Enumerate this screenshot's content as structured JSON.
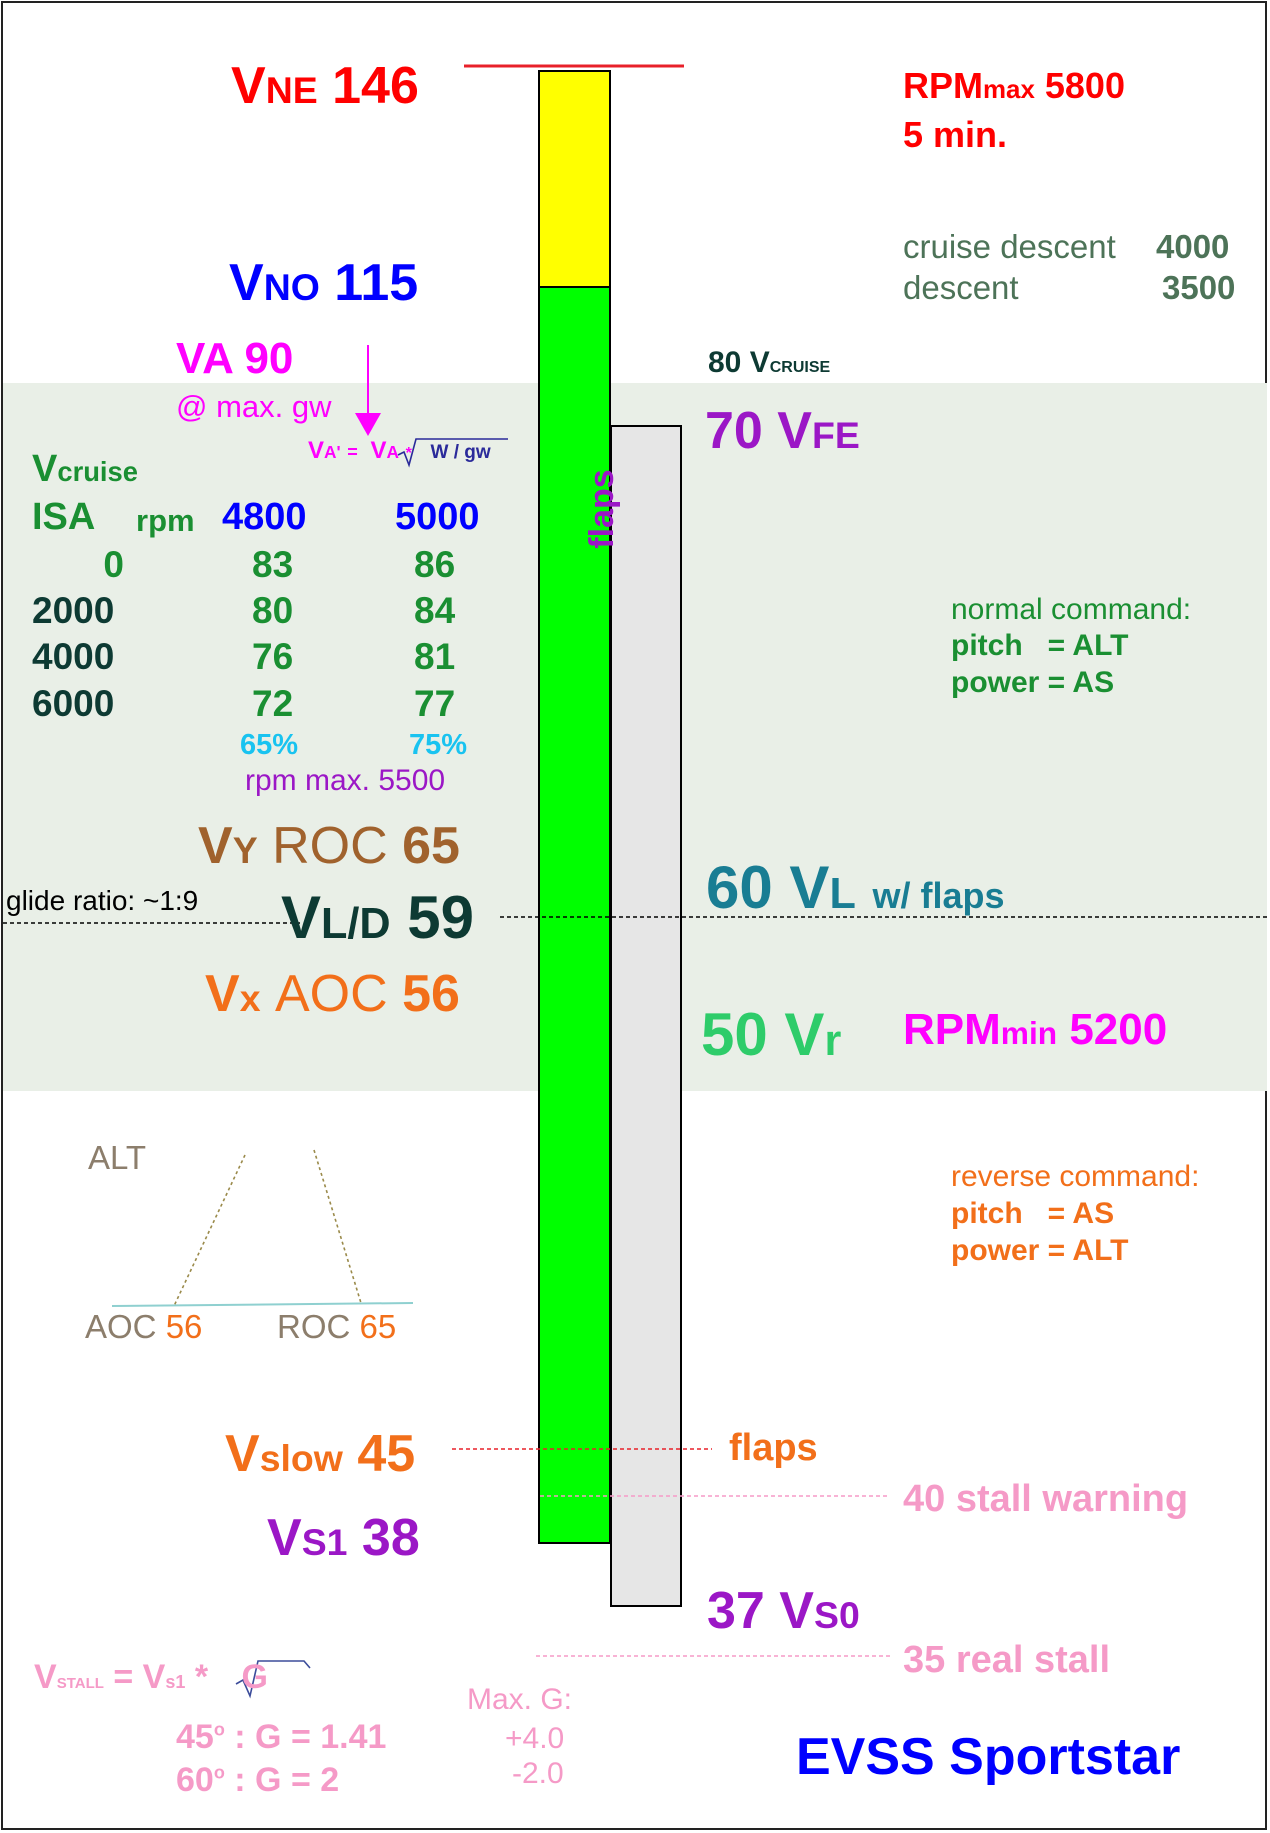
{
  "colors": {
    "vne": "#ff0000",
    "vno": "#0000ff",
    "va": "#ff00ff",
    "green_arc": "#00ff00",
    "yellow_arc": "#ffff00",
    "flaps_bar": "#e6e6e6",
    "band": "#e9efe7",
    "cruise_green": "#1a8f32",
    "vy": "#a0622d",
    "vld": "#0d3a33",
    "vx": "#f26f1a",
    "vs1": "#9b17c6",
    "stall": "#f59ac7",
    "gray_text": "#4d7358",
    "teal": "#197d93",
    "vr": "#2ecc6a",
    "aoc_gray": "#8c7e6c"
  },
  "icons": [
    "va-arrow-icon",
    "sqrt-icon"
  ],
  "vne": {
    "main": "V",
    "sub": "NE",
    "value": "146"
  },
  "vno": {
    "main": "V",
    "sub": "NO",
    "value": "115"
  },
  "va": {
    "label": "VA 90",
    "note": "@ max. gw",
    "formula": {
      "lhs_main": "V",
      "lhs_sub": "A'",
      "eq": "=",
      "mid_main": "V",
      "mid_sub": "A",
      "op": "*",
      "radicand": "W / gw"
    }
  },
  "rpm_max": {
    "main": "RPM",
    "sub": "max",
    "value": "5800",
    "duration": "5 min."
  },
  "cruise_descent": {
    "label": "cruise descent",
    "value": "4000"
  },
  "descent": {
    "label": "descent",
    "value": "3500"
  },
  "v_cruise_mark": {
    "value": "80",
    "main": "V",
    "sub": "CRUISE"
  },
  "vfe": {
    "value": "70",
    "main": "V",
    "sub": "FE"
  },
  "flaps_bar_label": "flaps",
  "cruise_table": {
    "title_main": "V",
    "title_sub": "cruise",
    "header": {
      "isa": "ISA",
      "rpm": "rpm",
      "col1": "4800",
      "col2": "5000"
    },
    "rows": [
      {
        "alt": "0",
        "v1": "83",
        "v2": "86"
      },
      {
        "alt": "2000",
        "v1": "80",
        "v2": "84"
      },
      {
        "alt": "4000",
        "v1": "76",
        "v2": "81"
      },
      {
        "alt": "6000",
        "v1": "72",
        "v2": "77"
      }
    ],
    "power": {
      "p1": "65%",
      "p2": "75%"
    },
    "rpm_note": "rpm max. 5500"
  },
  "normal_command": {
    "title": "normal command:",
    "line1": "pitch   = ALT",
    "line2": "power = AS"
  },
  "vy": {
    "main": "V",
    "sub": "Y",
    "label": "ROC",
    "value": "65"
  },
  "glide": "glide ratio: ~1:9",
  "vld": {
    "main": "V",
    "sub": "L/D",
    "value": "59"
  },
  "vl": {
    "value": "60",
    "main": "V",
    "sub": "L",
    "suffix": "w/ flaps"
  },
  "vx": {
    "main": "V",
    "sub": "x",
    "label": "AOC",
    "value": "56"
  },
  "vr": {
    "value": "50",
    "main": "V",
    "sub": "r"
  },
  "rpm_min": {
    "main": "RPM",
    "sub": "min",
    "value": "5200"
  },
  "triangle": {
    "alt": "ALT",
    "aoc_label": "AOC",
    "aoc_value": "56",
    "roc_label": "ROC",
    "roc_value": "65"
  },
  "reverse_command": {
    "title": "reverse command:",
    "line1": "pitch   = AS",
    "line2": "power = ALT"
  },
  "vslow": {
    "main": "V",
    "sub": "slow",
    "value": "45",
    "flaps": "flaps"
  },
  "stall_warning": "40 stall warning",
  "vs1": {
    "main": "V",
    "sub": "S1",
    "value": "38"
  },
  "vs0": {
    "value": "37",
    "main": "V",
    "sub": "S0"
  },
  "real_stall": "35 real stall",
  "stall_formula": {
    "lhs_main": "V",
    "lhs_sub": "STALL",
    "eq": "=",
    "rhs_main": "V",
    "rhs_sub": "s1",
    "op": "*",
    "radicand": "G"
  },
  "bank": {
    "b45": "45",
    "g45": ": G = 1.41",
    "b60": "60",
    "g60": ": G = 2",
    "deg": "o"
  },
  "max_g": {
    "title": "Max. G:",
    "pos": "+4.0",
    "neg": "-2.0"
  },
  "title": "EVSS Sportstar"
}
